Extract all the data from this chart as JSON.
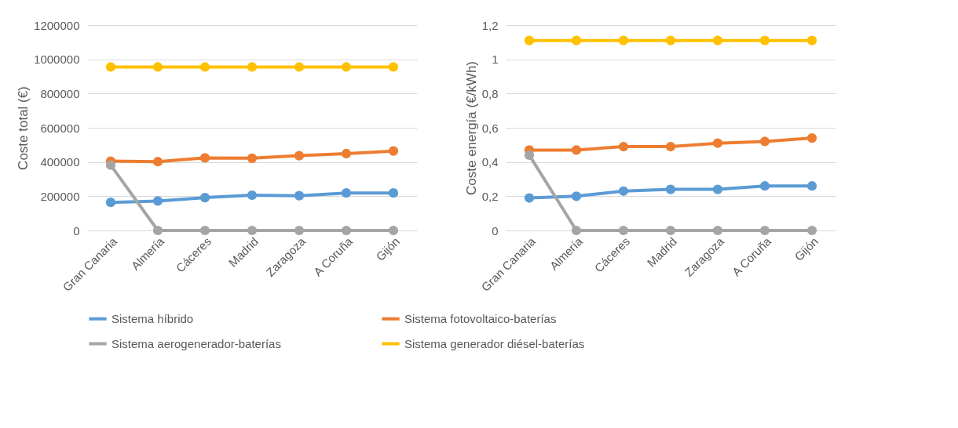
{
  "chart_data": [
    {
      "type": "line",
      "ylabel": "Coste total (€)",
      "categories": [
        "Gran Canaria",
        "Almería",
        "Cáceres",
        "Madrid",
        "Zaragoza",
        "A Coruña",
        "Gijón"
      ],
      "ylim": [
        0,
        1200000
      ],
      "yticks": [
        0,
        200000,
        400000,
        600000,
        800000,
        1000000,
        1200000
      ],
      "grid": "y",
      "marker": "circle",
      "line_style": "solid",
      "legend": "bottom",
      "series": [
        {
          "name": "Sistema híbrido",
          "color": "#5b9bd5",
          "values": [
            164000,
            172000,
            192000,
            206000,
            203000,
            219000,
            219000
          ]
        },
        {
          "name": "Sistema fotovoltaico-baterías",
          "color": "#ed7d31",
          "values": [
            405000,
            402000,
            424000,
            422000,
            437000,
            449000,
            464000
          ]
        },
        {
          "name": "Sistema aerogenerador-baterías",
          "color": "#a5a5a5",
          "values": [
            382000,
            0,
            0,
            0,
            0,
            0,
            0
          ]
        },
        {
          "name": "Sistema generador diésel-baterías",
          "color": "#ffc000",
          "values": [
            955000,
            955000,
            955000,
            955000,
            955000,
            955000,
            955000
          ]
        }
      ]
    },
    {
      "type": "line",
      "ylabel": "Coste energía (€/kWh)",
      "categories": [
        "Gran Canaria",
        "Almería",
        "Cáceres",
        "Madrid",
        "Zaragoza",
        "A Coruña",
        "Gijón"
      ],
      "ylim": [
        0,
        1.2
      ],
      "yticks": [
        0,
        {
          "value": 0.2,
          "label": "0,2"
        },
        {
          "value": 0.4,
          "label": "0,4"
        },
        {
          "value": 0.6,
          "label": "0,6"
        },
        {
          "value": 0.8,
          "label": "0,8"
        },
        1,
        {
          "value": 1.2,
          "label": "1,2"
        }
      ],
      "grid": "y",
      "marker": "circle",
      "line_style": "solid",
      "series": [
        {
          "name": "Sistema híbrido",
          "color": "#5b9bd5",
          "values": [
            0.19,
            0.2,
            0.23,
            0.24,
            0.24,
            0.26,
            0.26
          ]
        },
        {
          "name": "Sistema fotovoltaico-baterías",
          "color": "#ed7d31",
          "values": [
            0.47,
            0.47,
            0.49,
            0.49,
            0.51,
            0.52,
            0.54
          ]
        },
        {
          "name": "Sistema aerogenerador-baterías",
          "color": "#a5a5a5",
          "values": [
            0.44,
            0,
            0,
            0,
            0,
            0,
            0
          ]
        },
        {
          "name": "Sistema generador diésel-baterías",
          "color": "#ffc000",
          "values": [
            1.11,
            1.11,
            1.11,
            1.11,
            1.11,
            1.11,
            1.11
          ]
        }
      ]
    }
  ]
}
